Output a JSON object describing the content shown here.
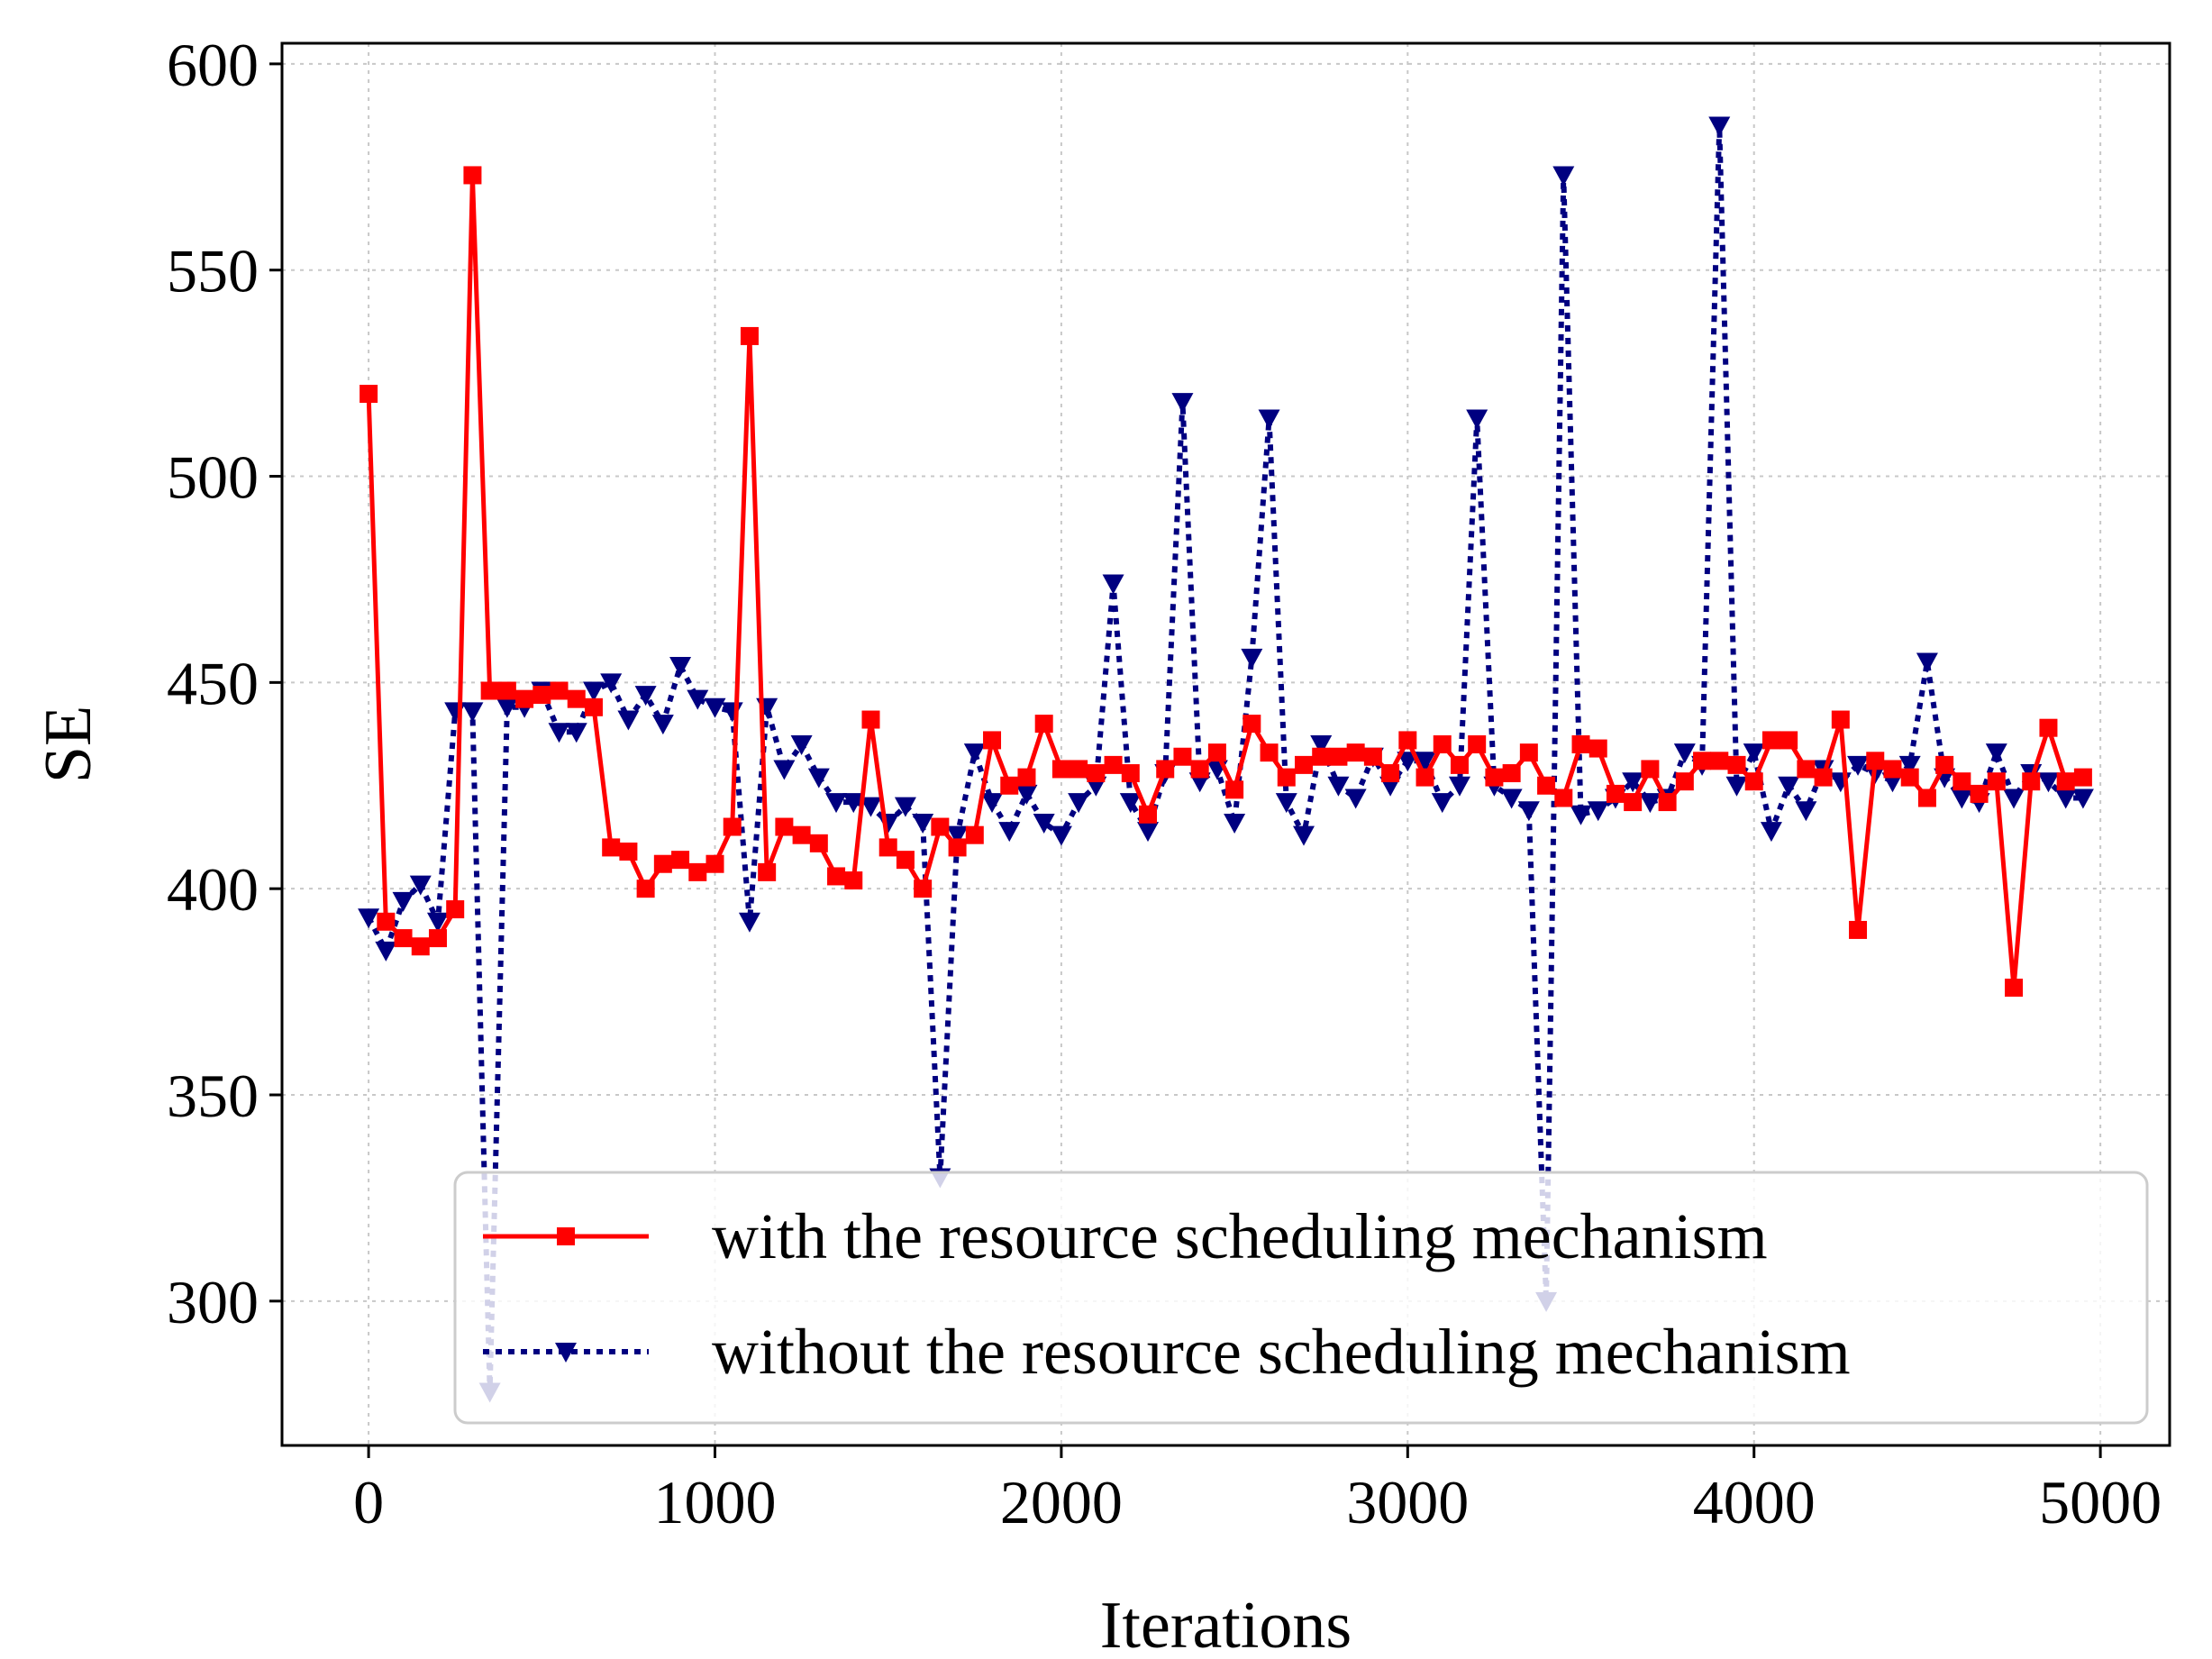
{
  "chart_data": {
    "type": "line",
    "title": "",
    "xlabel": "Iterations",
    "ylabel": "SE",
    "xlim": [
      -250,
      5200
    ],
    "ylim": [
      265,
      605
    ],
    "xticks": [
      0,
      1000,
      2000,
      3000,
      4000,
      5000
    ],
    "xtick_labels": [
      "0",
      "1000",
      "2000",
      "3000",
      "4000",
      "5000"
    ],
    "yticks": [
      300,
      350,
      400,
      450,
      500,
      550,
      600
    ],
    "ytick_labels": [
      "300",
      "350",
      "400",
      "450",
      "500",
      "550",
      "600"
    ],
    "grid": true,
    "legend_position": "bottom-right",
    "x": [
      0,
      50,
      100,
      150,
      200,
      250,
      300,
      350,
      400,
      450,
      500,
      550,
      600,
      650,
      700,
      750,
      800,
      850,
      900,
      950,
      1000,
      1050,
      1100,
      1150,
      1200,
      1250,
      1300,
      1350,
      1400,
      1450,
      1500,
      1550,
      1600,
      1650,
      1700,
      1750,
      1800,
      1850,
      1900,
      1950,
      2000,
      2050,
      2100,
      2150,
      2200,
      2250,
      2300,
      2350,
      2400,
      2450,
      2500,
      2550,
      2600,
      2650,
      2700,
      2750,
      2800,
      2850,
      2900,
      2950,
      3000,
      3050,
      3100,
      3150,
      3200,
      3250,
      3300,
      3350,
      3400,
      3450,
      3500,
      3550,
      3600,
      3650,
      3700,
      3750,
      3800,
      3850,
      3900,
      3950,
      4000,
      4050,
      4100,
      4150,
      4200,
      4250,
      4300,
      4350,
      4400,
      4450,
      4500,
      4550,
      4600,
      4650,
      4700,
      4750,
      4800,
      4850,
      4900,
      4950
    ],
    "series": [
      {
        "name": "with the resource scheduling mechanism",
        "color": "#ff0000",
        "line_style": "solid",
        "marker": "square",
        "values": [
          520,
          392,
          388,
          386,
          388,
          395,
          573,
          448,
          448,
          446,
          447,
          448,
          446,
          444,
          410,
          409,
          400,
          406,
          407,
          404,
          406,
          415,
          534,
          404,
          415,
          413,
          411,
          403,
          402,
          441,
          410,
          407,
          400,
          415,
          410,
          413,
          436,
          425,
          427,
          440,
          429,
          429,
          428,
          430,
          428,
          418,
          429,
          432,
          429,
          433,
          424,
          440,
          433,
          427,
          430,
          432,
          432,
          433,
          432,
          428,
          436,
          427,
          435,
          430,
          435,
          427,
          428,
          433,
          425,
          422,
          435,
          434,
          423,
          421,
          429,
          421,
          426,
          431,
          431,
          430,
          426,
          436,
          436,
          429,
          427,
          441,
          390,
          431,
          429,
          427,
          422,
          430,
          426,
          423,
          426,
          376,
          426,
          439,
          426,
          427
        ]
      },
      {
        "name": "without the resource scheduling mechanism",
        "color": "#000080",
        "line_style": "dotted",
        "marker": "triangle-down",
        "values": [
          393,
          385,
          397,
          401,
          392,
          443,
          443,
          278,
          444,
          444,
          448,
          438,
          438,
          448,
          450,
          441,
          447,
          440,
          454,
          446,
          444,
          443,
          392,
          444,
          429,
          435,
          427,
          421,
          421,
          420,
          416,
          420,
          416,
          330,
          413,
          433,
          421,
          414,
          423,
          416,
          413,
          421,
          425,
          474,
          421,
          414,
          428,
          518,
          426,
          429,
          416,
          456,
          514,
          421,
          413,
          435,
          425,
          422,
          432,
          425,
          431,
          431,
          421,
          425,
          514,
          425,
          422,
          419,
          300,
          573,
          418,
          419,
          422,
          426,
          421,
          422,
          433,
          430,
          585,
          425,
          433,
          414,
          425,
          419,
          429,
          426,
          430,
          428,
          426,
          430,
          455,
          427,
          422,
          421,
          433,
          422,
          428,
          426,
          422,
          422
        ]
      }
    ]
  }
}
